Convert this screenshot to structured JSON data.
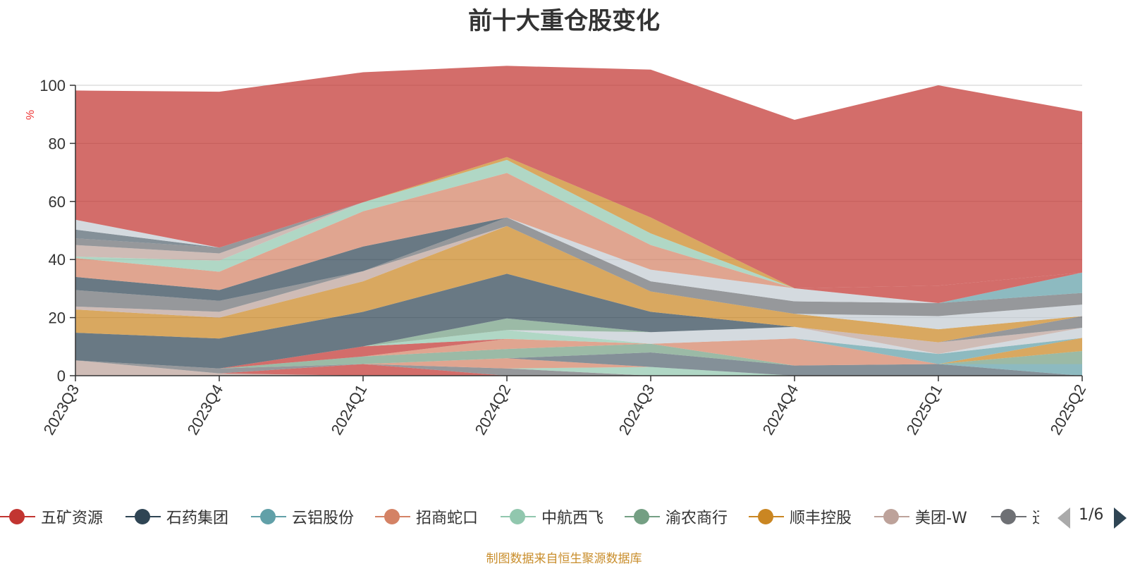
{
  "title": "前十大重仓股变化",
  "source_text": "制图数据来自恒生聚源数据库",
  "legend": {
    "page": "1/6",
    "items": [
      {
        "name": "五矿资源",
        "color": "#c23531"
      },
      {
        "name": "石药集团",
        "color": "#2f4554"
      },
      {
        "name": "云铝股份",
        "color": "#61a0a8"
      },
      {
        "name": "招商蛇口",
        "color": "#d48265"
      },
      {
        "name": "中航西飞",
        "color": "#91c7ae"
      },
      {
        "name": "渝农商行",
        "color": "#749f83"
      },
      {
        "name": "顺丰控股",
        "color": "#ca8622"
      },
      {
        "name": "美团-W",
        "color": "#bda29a"
      },
      {
        "name": "迅",
        "color": "#6e7074"
      }
    ]
  },
  "chart_data": {
    "type": "area",
    "stacked": true,
    "title": "前十大重仓股变化",
    "ylabel": "%",
    "ylim": [
      0,
      100
    ],
    "yticks": [
      0,
      20,
      40,
      60,
      80,
      100
    ],
    "categories": [
      "2023Q3",
      "2023Q4",
      "2024Q1",
      "2024Q2",
      "2024Q3",
      "2024Q4",
      "2025Q1",
      "2025Q2"
    ],
    "series": [
      {
        "color": "#bda29a",
        "values": [
          5.3,
          0.8,
          0,
          0,
          0,
          0,
          0,
          0
        ]
      },
      {
        "color": "#c23531",
        "values": [
          0,
          0,
          4.0,
          0,
          0,
          0,
          0,
          0
        ]
      },
      {
        "color": "#6e7074",
        "values": [
          0,
          1.7,
          0,
          2.5,
          0,
          0,
          0,
          0
        ]
      },
      {
        "color": "#91c7ae",
        "values": [
          0,
          0,
          0,
          0,
          3.0,
          0,
          0,
          0
        ]
      },
      {
        "color": "#d48265",
        "values": [
          0,
          0,
          0,
          3.5,
          0,
          0,
          0,
          0
        ]
      },
      {
        "color": "#546570",
        "values": [
          0,
          0,
          0,
          0,
          5.0,
          3.5,
          4.0,
          0
        ]
      },
      {
        "color": "#61a0a8",
        "values": [
          0,
          0,
          0,
          0,
          0,
          0,
          0,
          4.0
        ]
      },
      {
        "color": "#749f83",
        "values": [
          0,
          0,
          2.6,
          3.2,
          3.0,
          0,
          0,
          4.5
        ]
      },
      {
        "color": "#ca8622",
        "values": [
          0,
          0,
          0,
          0,
          0,
          0,
          0,
          4.5
        ]
      },
      {
        "color": "#d48265",
        "values": [
          0,
          0,
          0,
          3.5,
          0,
          9.3,
          0,
          0
        ]
      },
      {
        "color": "#c23531",
        "values": [
          0,
          0,
          3.5,
          0,
          0,
          0,
          0,
          0
        ]
      },
      {
        "color": "#91c7ae",
        "values": [
          0,
          0,
          0,
          3.0,
          0,
          0,
          0,
          0
        ]
      },
      {
        "color": "#61a0a8",
        "values": [
          0,
          0,
          0,
          0,
          0,
          0,
          3.5,
          0
        ]
      },
      {
        "color": "#c4ccd3",
        "values": [
          0,
          0,
          0,
          0,
          4.0,
          4.0,
          0,
          3.5
        ]
      },
      {
        "color": "#749f83",
        "values": [
          0,
          0,
          0,
          4.0,
          0,
          0,
          0,
          0
        ]
      },
      {
        "color": "#bda29a",
        "values": [
          0,
          0,
          0,
          0,
          0,
          0,
          4.0,
          0
        ]
      },
      {
        "color": "#2f4554",
        "values": [
          9.5,
          10.3,
          11.9,
          15.4,
          7.0,
          0,
          0,
          0
        ]
      },
      {
        "color": "#6e7074",
        "values": [
          0,
          0,
          0,
          0,
          0,
          0,
          0,
          4.0
        ]
      },
      {
        "color": "#ca8622",
        "values": [
          8.0,
          7.2,
          10.5,
          16.4,
          7.0,
          4.5,
          4.5,
          0
        ]
      },
      {
        "color": "#bda29a",
        "values": [
          1.0,
          2.0,
          3.5,
          0,
          0,
          0,
          0,
          0
        ]
      },
      {
        "color": "#c4ccd3",
        "values": [
          0,
          0,
          0,
          0,
          0,
          0,
          4.5,
          4.0
        ]
      },
      {
        "color": "#6e7074",
        "values": [
          5.7,
          3.8,
          0,
          3.0,
          3.5,
          4.3,
          4.5,
          4.0
        ]
      },
      {
        "color": "#2f4554",
        "values": [
          4.5,
          3.7,
          8.5,
          0,
          0,
          0,
          0,
          0
        ]
      },
      {
        "color": "#c4ccd3",
        "values": [
          0,
          0,
          0,
          0,
          4.0,
          4.5,
          0,
          0
        ]
      },
      {
        "color": "#d48265",
        "values": [
          6.5,
          6.3,
          12.1,
          15.3,
          8.5,
          0,
          0,
          0
        ]
      },
      {
        "color": "#61a0a8",
        "values": [
          0,
          0,
          0,
          0,
          0,
          0,
          0,
          7.0
        ]
      },
      {
        "color": "#91c7ae",
        "values": [
          0.5,
          3.8,
          3.1,
          4.5,
          4.0,
          0,
          0,
          0
        ]
      },
      {
        "color": "#ca8622",
        "values": [
          0,
          0,
          0,
          1.0,
          5.5,
          0,
          0,
          0
        ]
      },
      {
        "color": "#c23531",
        "values": [
          0,
          0,
          0,
          0,
          0,
          0,
          6.0,
          0
        ]
      },
      {
        "color": "#bda29a",
        "values": [
          4.0,
          2.5,
          0,
          0,
          0,
          0,
          0,
          0
        ]
      },
      {
        "color": "#6e7074",
        "values": [
          2.3,
          2.0,
          0,
          0,
          0,
          0,
          0,
          0
        ]
      },
      {
        "color": "#546570",
        "values": [
          3.0,
          0,
          0,
          0,
          0,
          0,
          0,
          0
        ]
      },
      {
        "color": "#c4ccd3",
        "values": [
          3.4,
          0,
          0,
          0,
          0,
          0,
          0,
          0
        ]
      },
      {
        "color": "#c23531",
        "values": [
          44.5,
          53.7,
          44.8,
          31.4,
          50.9,
          58.0,
          69.0,
          55.5
        ]
      }
    ]
  }
}
